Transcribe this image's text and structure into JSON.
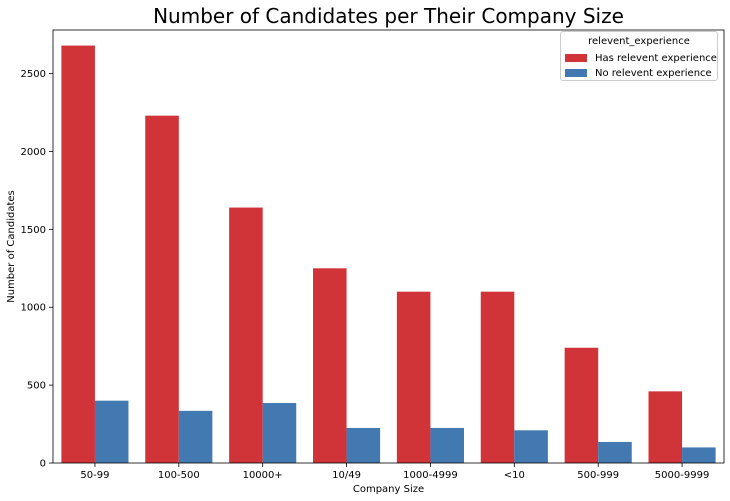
{
  "chart_data": {
    "type": "bar",
    "title": "Number of Candidates per Their Company Size",
    "xlabel": "Company Size",
    "ylabel": "Number of Candidates",
    "categories": [
      "50-99",
      "100-500",
      "10000+",
      "10/49",
      "1000-4999",
      "<10",
      "500-999",
      "5000-9999"
    ],
    "series": [
      {
        "name": "Has relevent experience",
        "color": "#d03438",
        "values": [
          2680,
          2230,
          1640,
          1250,
          1100,
          1100,
          740,
          460
        ]
      },
      {
        "name": "No relevent experience",
        "color": "#4179b0",
        "values": [
          400,
          335,
          385,
          225,
          225,
          210,
          135,
          100
        ]
      }
    ],
    "ylim": [
      0,
      2780
    ],
    "yticks": [
      0,
      500,
      1000,
      1500,
      2000,
      2500
    ],
    "legend": {
      "title": "relevent_experience",
      "position": "top-right"
    },
    "grid": false
  }
}
